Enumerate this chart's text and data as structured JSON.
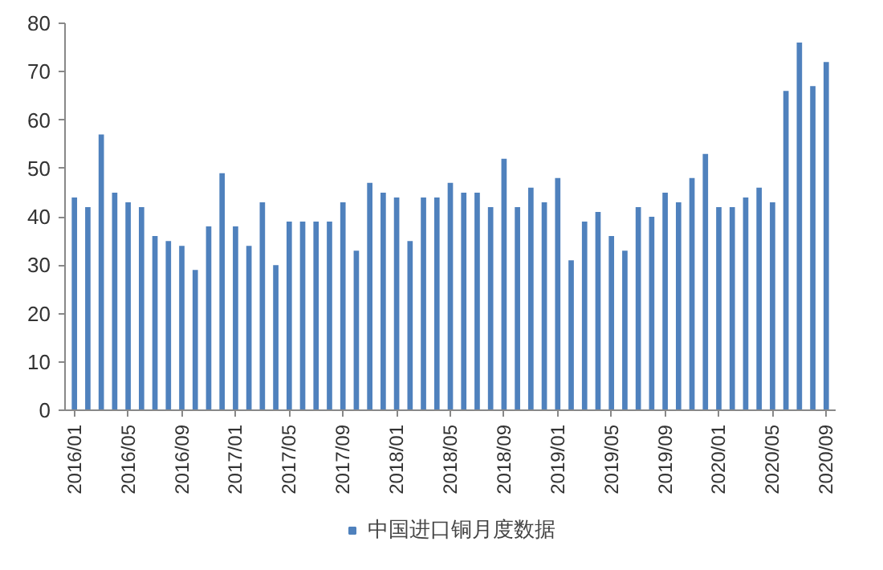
{
  "chart_data": {
    "type": "bar",
    "categories": [
      "2016/01",
      null,
      null,
      null,
      "2016/05",
      null,
      null,
      null,
      "2016/09",
      null,
      null,
      null,
      "2017/01",
      null,
      null,
      null,
      "2017/05",
      null,
      null,
      null,
      "2017/09",
      null,
      null,
      null,
      "2018/01",
      null,
      null,
      null,
      "2018/05",
      null,
      null,
      null,
      "2018/09",
      null,
      null,
      null,
      "2019/01",
      null,
      null,
      null,
      "2019/05",
      null,
      null,
      null,
      "2019/09",
      null,
      null,
      null,
      "2020/01",
      null,
      null,
      null,
      "2020/05",
      null,
      null,
      null,
      "2020/09"
    ],
    "series": [
      {
        "name": "中国进口铜月度数据",
        "color": "#4f81bd",
        "values": [
          44,
          42,
          57,
          45,
          43,
          42,
          36,
          35,
          34,
          29,
          38,
          49,
          38,
          34,
          43,
          30,
          39,
          39,
          39,
          39,
          43,
          33,
          47,
          45,
          44,
          35,
          44,
          44,
          47,
          45,
          45,
          42,
          52,
          42,
          46,
          43,
          48,
          31,
          39,
          41,
          36,
          33,
          42,
          40,
          45,
          43,
          48,
          53,
          42,
          42,
          44,
          46,
          43,
          66,
          76,
          67,
          72
        ]
      }
    ],
    "ylim": [
      0,
      80
    ],
    "yticks": [
      0,
      10,
      20,
      30,
      40,
      50,
      60,
      70,
      80
    ],
    "grid": false,
    "legend": "bottom"
  }
}
